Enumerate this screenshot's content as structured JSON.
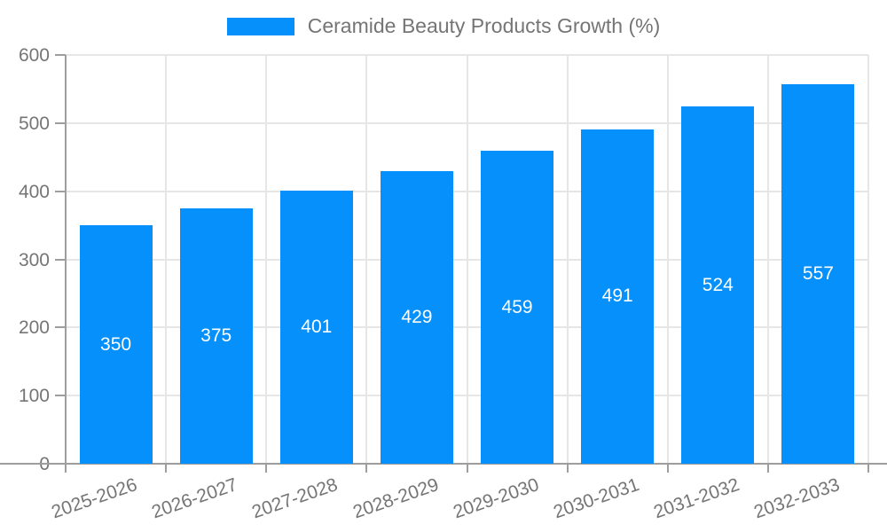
{
  "chart_data": {
    "type": "bar",
    "title": "Ceramide Beauty Products Growth (%)",
    "categories": [
      "2025-2026",
      "2026-2027",
      "2027-2028",
      "2028-2029",
      "2029-2030",
      "2030-2031",
      "2031-2032",
      "2032-2033"
    ],
    "values": [
      350,
      375,
      401,
      429,
      459,
      491,
      524,
      557
    ],
    "xlabel": "",
    "ylabel": "",
    "ylim": [
      0,
      600
    ],
    "yticks": [
      0,
      100,
      200,
      300,
      400,
      500,
      600
    ],
    "grid": "horizontal and vertical light gray gridlines",
    "legend": {
      "position": "top-center",
      "entries": [
        {
          "label": "Ceramide Beauty Products Growth (%)",
          "color": "#0590fb"
        }
      ]
    },
    "colors": {
      "bar": "#0590fb",
      "value_label": "#ffffff",
      "axis": "#9e9e9e",
      "gridline": "#e6e6e6",
      "tick_text": "#757575"
    }
  }
}
